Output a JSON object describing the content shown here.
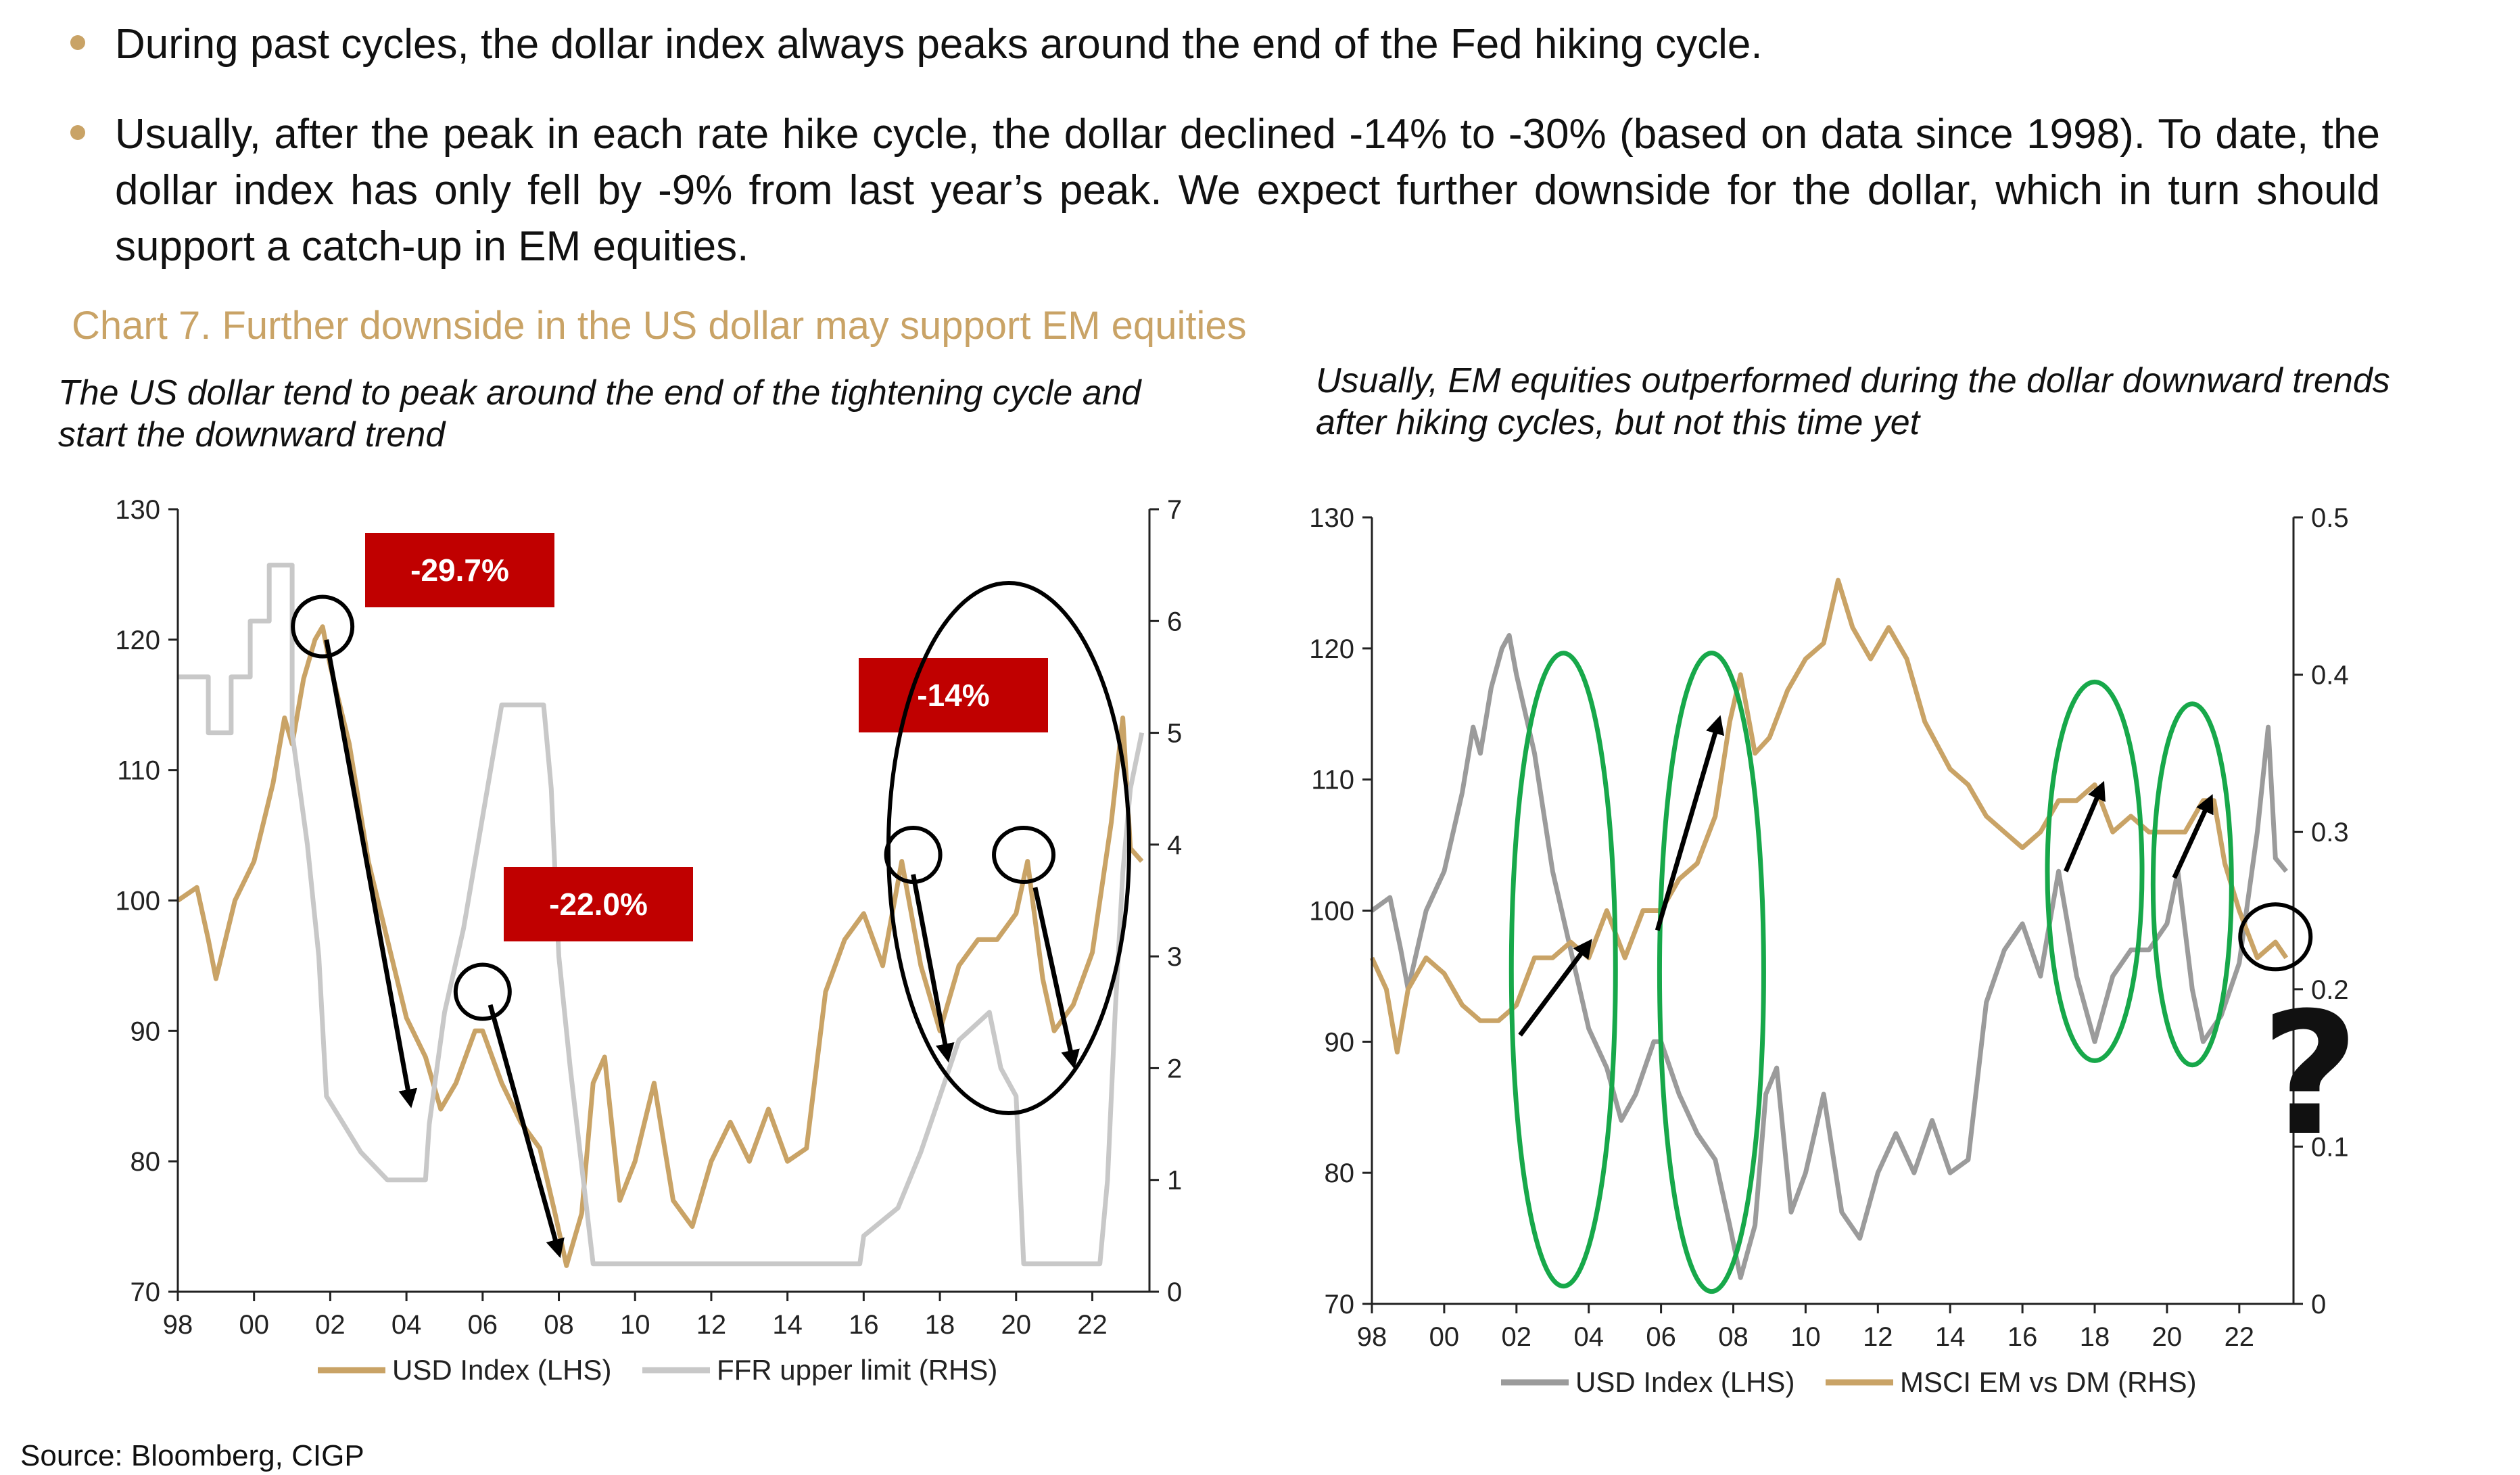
{
  "colors": {
    "accent": "#c9a366",
    "gold": "#c9a366",
    "grey_line": "#9b9b9b",
    "light_grey": "#c8c8c8",
    "callout": "#c00000",
    "green": "#17a84a"
  },
  "bullets": [
    {
      "text": "During past cycles, the dollar index always peaks around the end of the Fed hiking cycle."
    },
    {
      "text": "Usually, after the peak in each rate hike cycle, the dollar declined -14% to -30% (based on data since 1998). To date, the dollar index has only fell by -9% from last year’s peak. We expect further downside for the dollar, which in turn should support a catch-up in EM equities."
    }
  ],
  "chart_title": "Chart 7. Further downside in the US dollar may support EM equities",
  "source": "Source: Bloomberg, CIGP",
  "chart_data": [
    {
      "type": "line",
      "title": "The US dollar tend to peak around the end of the tightening cycle and start the downward trend",
      "x_ticks": [
        "98",
        "00",
        "02",
        "04",
        "06",
        "08",
        "10",
        "12",
        "14",
        "16",
        "18",
        "20",
        "22"
      ],
      "x_range": [
        1998,
        2023.5
      ],
      "y_left": {
        "range": [
          70,
          130
        ],
        "ticks": [
          "70",
          "80",
          "90",
          "100",
          "110",
          "120",
          "130"
        ]
      },
      "y_right": {
        "range": [
          0,
          7
        ],
        "ticks": [
          "0",
          "1",
          "2",
          "3",
          "4",
          "5",
          "6",
          "7"
        ]
      },
      "series": [
        {
          "name": "USD Index (LHS)",
          "axis": "left",
          "color": "#c9a366",
          "points": [
            [
              1998.0,
              100
            ],
            [
              1998.5,
              101
            ],
            [
              1998.8,
              97
            ],
            [
              1999.0,
              94
            ],
            [
              1999.5,
              100
            ],
            [
              2000.0,
              103
            ],
            [
              2000.5,
              109
            ],
            [
              2000.8,
              114
            ],
            [
              2001.0,
              112
            ],
            [
              2001.3,
              117
            ],
            [
              2001.6,
              120
            ],
            [
              2001.8,
              121
            ],
            [
              2002.0,
              118
            ],
            [
              2002.5,
              112
            ],
            [
              2003.0,
              103
            ],
            [
              2003.5,
              97
            ],
            [
              2004.0,
              91
            ],
            [
              2004.5,
              88
            ],
            [
              2004.9,
              84
            ],
            [
              2005.3,
              86
            ],
            [
              2005.8,
              90
            ],
            [
              2006.0,
              90
            ],
            [
              2006.5,
              86
            ],
            [
              2007.0,
              83
            ],
            [
              2007.5,
              81
            ],
            [
              2007.9,
              76
            ],
            [
              2008.2,
              72
            ],
            [
              2008.6,
              76
            ],
            [
              2008.9,
              86
            ],
            [
              2009.2,
              88
            ],
            [
              2009.6,
              77
            ],
            [
              2010.0,
              80
            ],
            [
              2010.5,
              86
            ],
            [
              2011.0,
              77
            ],
            [
              2011.5,
              75
            ],
            [
              2012.0,
              80
            ],
            [
              2012.5,
              83
            ],
            [
              2013.0,
              80
            ],
            [
              2013.5,
              84
            ],
            [
              2014.0,
              80
            ],
            [
              2014.5,
              81
            ],
            [
              2015.0,
              93
            ],
            [
              2015.5,
              97
            ],
            [
              2016.0,
              99
            ],
            [
              2016.5,
              95
            ],
            [
              2017.0,
              103
            ],
            [
              2017.5,
              95
            ],
            [
              2018.0,
              90
            ],
            [
              2018.5,
              95
            ],
            [
              2019.0,
              97
            ],
            [
              2019.5,
              97
            ],
            [
              2020.0,
              99
            ],
            [
              2020.3,
              103
            ],
            [
              2020.7,
              94
            ],
            [
              2021.0,
              90
            ],
            [
              2021.5,
              92
            ],
            [
              2022.0,
              96
            ],
            [
              2022.5,
              106
            ],
            [
              2022.8,
              114
            ],
            [
              2023.0,
              104
            ],
            [
              2023.3,
              103
            ]
          ]
        },
        {
          "name": "FFR upper limit (RHS)",
          "axis": "right",
          "color": "#c8c8c8",
          "points": [
            [
              1998.0,
              5.5
            ],
            [
              1998.8,
              5.5
            ],
            [
              1998.8,
              5.0
            ],
            [
              1999.4,
              5.0
            ],
            [
              1999.4,
              5.5
            ],
            [
              1999.9,
              5.5
            ],
            [
              1999.9,
              6.0
            ],
            [
              2000.4,
              6.0
            ],
            [
              2000.4,
              6.5
            ],
            [
              2001.0,
              6.5
            ],
            [
              2001.0,
              5.0
            ],
            [
              2001.4,
              4.0
            ],
            [
              2001.7,
              3.0
            ],
            [
              2001.9,
              1.75
            ],
            [
              2002.8,
              1.25
            ],
            [
              2003.5,
              1.0
            ],
            [
              2004.5,
              1.0
            ],
            [
              2004.6,
              1.5
            ],
            [
              2005.0,
              2.5
            ],
            [
              2005.5,
              3.25
            ],
            [
              2006.0,
              4.25
            ],
            [
              2006.5,
              5.25
            ],
            [
              2007.6,
              5.25
            ],
            [
              2007.8,
              4.5
            ],
            [
              2008.0,
              3.0
            ],
            [
              2008.3,
              2.0
            ],
            [
              2008.9,
              0.25
            ],
            [
              2015.9,
              0.25
            ],
            [
              2016.0,
              0.5
            ],
            [
              2016.9,
              0.75
            ],
            [
              2017.5,
              1.25
            ],
            [
              2018.0,
              1.75
            ],
            [
              2018.5,
              2.25
            ],
            [
              2019.3,
              2.5
            ],
            [
              2019.6,
              2.0
            ],
            [
              2020.0,
              1.75
            ],
            [
              2020.2,
              0.25
            ],
            [
              2022.2,
              0.25
            ],
            [
              2022.4,
              1.0
            ],
            [
              2022.6,
              2.5
            ],
            [
              2022.8,
              3.75
            ],
            [
              2023.0,
              4.5
            ],
            [
              2023.3,
              5.0
            ]
          ]
        }
      ],
      "callouts": [
        {
          "label": "-29.7%"
        },
        {
          "label": "-22.0%"
        },
        {
          "label": "-14%"
        }
      ]
    },
    {
      "type": "line",
      "title": "Usually, EM equities outperformed during the dollar downward trends after hiking cycles, but not this time yet",
      "x_ticks": [
        "98",
        "00",
        "02",
        "04",
        "06",
        "08",
        "10",
        "12",
        "14",
        "16",
        "18",
        "20",
        "22"
      ],
      "x_range": [
        1998,
        2023.5
      ],
      "y_left": {
        "range": [
          70,
          130
        ],
        "ticks": [
          "70",
          "80",
          "90",
          "100",
          "110",
          "120",
          "130"
        ]
      },
      "y_right": {
        "range": [
          0,
          0.5
        ],
        "ticks": [
          "0",
          "0.1",
          "0.2",
          "0.3",
          "0.4",
          "0.5"
        ]
      },
      "series": [
        {
          "name": "USD Index (LHS)",
          "axis": "left",
          "color": "#9b9b9b",
          "points": [
            [
              1998.0,
              100
            ],
            [
              1998.5,
              101
            ],
            [
              1998.8,
              97
            ],
            [
              1999.0,
              94
            ],
            [
              1999.5,
              100
            ],
            [
              2000.0,
              103
            ],
            [
              2000.5,
              109
            ],
            [
              2000.8,
              114
            ],
            [
              2001.0,
              112
            ],
            [
              2001.3,
              117
            ],
            [
              2001.6,
              120
            ],
            [
              2001.8,
              121
            ],
            [
              2002.0,
              118
            ],
            [
              2002.5,
              112
            ],
            [
              2003.0,
              103
            ],
            [
              2003.5,
              97
            ],
            [
              2004.0,
              91
            ],
            [
              2004.5,
              88
            ],
            [
              2004.9,
              84
            ],
            [
              2005.3,
              86
            ],
            [
              2005.8,
              90
            ],
            [
              2006.0,
              90
            ],
            [
              2006.5,
              86
            ],
            [
              2007.0,
              83
            ],
            [
              2007.5,
              81
            ],
            [
              2007.9,
              76
            ],
            [
              2008.2,
              72
            ],
            [
              2008.6,
              76
            ],
            [
              2008.9,
              86
            ],
            [
              2009.2,
              88
            ],
            [
              2009.6,
              77
            ],
            [
              2010.0,
              80
            ],
            [
              2010.5,
              86
            ],
            [
              2011.0,
              77
            ],
            [
              2011.5,
              75
            ],
            [
              2012.0,
              80
            ],
            [
              2012.5,
              83
            ],
            [
              2013.0,
              80
            ],
            [
              2013.5,
              84
            ],
            [
              2014.0,
              80
            ],
            [
              2014.5,
              81
            ],
            [
              2015.0,
              93
            ],
            [
              2015.5,
              97
            ],
            [
              2016.0,
              99
            ],
            [
              2016.5,
              95
            ],
            [
              2017.0,
              103
            ],
            [
              2017.5,
              95
            ],
            [
              2018.0,
              90
            ],
            [
              2018.5,
              95
            ],
            [
              2019.0,
              97
            ],
            [
              2019.5,
              97
            ],
            [
              2020.0,
              99
            ],
            [
              2020.3,
              103
            ],
            [
              2020.7,
              94
            ],
            [
              2021.0,
              90
            ],
            [
              2021.5,
              92
            ],
            [
              2022.0,
              96
            ],
            [
              2022.5,
              106
            ],
            [
              2022.8,
              114
            ],
            [
              2023.0,
              104
            ],
            [
              2023.3,
              103
            ]
          ]
        },
        {
          "name": "MSCI EM vs DM (RHS)",
          "axis": "right",
          "color": "#c9a366",
          "points": [
            [
              1998.0,
              0.22
            ],
            [
              1998.4,
              0.2
            ],
            [
              1998.7,
              0.16
            ],
            [
              1999.0,
              0.2
            ],
            [
              1999.5,
              0.22
            ],
            [
              2000.0,
              0.21
            ],
            [
              2000.5,
              0.19
            ],
            [
              2001.0,
              0.18
            ],
            [
              2001.5,
              0.18
            ],
            [
              2002.0,
              0.19
            ],
            [
              2002.5,
              0.22
            ],
            [
              2003.0,
              0.22
            ],
            [
              2003.5,
              0.23
            ],
            [
              2004.0,
              0.22
            ],
            [
              2004.5,
              0.25
            ],
            [
              2005.0,
              0.22
            ],
            [
              2005.5,
              0.25
            ],
            [
              2006.0,
              0.25
            ],
            [
              2006.5,
              0.27
            ],
            [
              2007.0,
              0.28
            ],
            [
              2007.5,
              0.31
            ],
            [
              2007.9,
              0.37
            ],
            [
              2008.2,
              0.4
            ],
            [
              2008.6,
              0.35
            ],
            [
              2009.0,
              0.36
            ],
            [
              2009.5,
              0.39
            ],
            [
              2010.0,
              0.41
            ],
            [
              2010.5,
              0.42
            ],
            [
              2010.9,
              0.46
            ],
            [
              2011.3,
              0.43
            ],
            [
              2011.8,
              0.41
            ],
            [
              2012.3,
              0.43
            ],
            [
              2012.8,
              0.41
            ],
            [
              2013.3,
              0.37
            ],
            [
              2014.0,
              0.34
            ],
            [
              2014.5,
              0.33
            ],
            [
              2015.0,
              0.31
            ],
            [
              2015.5,
              0.3
            ],
            [
              2016.0,
              0.29
            ],
            [
              2016.5,
              0.3
            ],
            [
              2017.0,
              0.32
            ],
            [
              2017.5,
              0.32
            ],
            [
              2018.0,
              0.33
            ],
            [
              2018.5,
              0.3
            ],
            [
              2019.0,
              0.31
            ],
            [
              2019.5,
              0.3
            ],
            [
              2020.0,
              0.3
            ],
            [
              2020.5,
              0.3
            ],
            [
              2021.0,
              0.32
            ],
            [
              2021.3,
              0.32
            ],
            [
              2021.6,
              0.28
            ],
            [
              2022.0,
              0.25
            ],
            [
              2022.5,
              0.22
            ],
            [
              2023.0,
              0.23
            ],
            [
              2023.3,
              0.22
            ]
          ]
        }
      ]
    }
  ]
}
